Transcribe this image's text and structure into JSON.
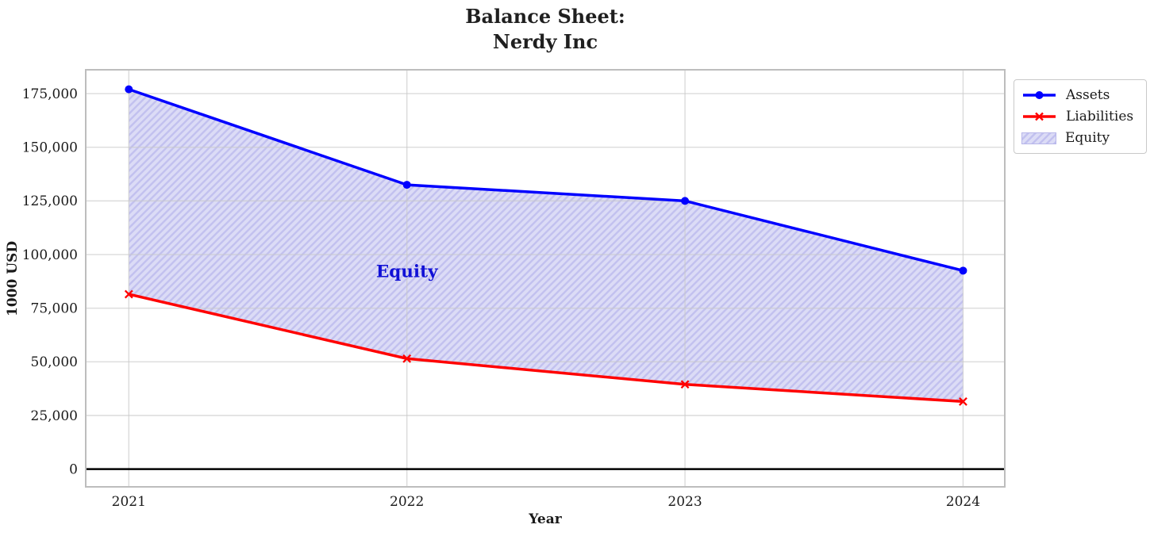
{
  "chart_data": {
    "type": "line",
    "title": "Balance Sheet:\nNerdy Inc",
    "title_lines": [
      "Balance Sheet:",
      "Nerdy Inc"
    ],
    "xlabel": "Year",
    "ylabel": "1000 USD",
    "x": [
      2021,
      2022,
      2023,
      2024
    ],
    "x_tick_labels": [
      "2021",
      "2022",
      "2023",
      "2024"
    ],
    "series": [
      {
        "name": "Assets",
        "color": "#0000ff",
        "marker": "circle",
        "values": [
          177000,
          132500,
          125000,
          92500
        ]
      },
      {
        "name": "Liabilities",
        "color": "#ff0000",
        "marker": "x",
        "values": [
          81500,
          51500,
          39500,
          31500
        ]
      }
    ],
    "equity_area": {
      "legend_label": "Equity",
      "fill_between": [
        "Liabilities",
        "Assets"
      ],
      "fill_color": "#dcdcf6",
      "hatch_color": "#c2c1ef",
      "hatch_style": "diagonal",
      "annotation": {
        "text": "Equity",
        "x": 2022,
        "y": 92000,
        "color": "#1111d6"
      }
    },
    "ytick_values": [
      0,
      25000,
      50000,
      75000,
      100000,
      125000,
      150000,
      175000
    ],
    "ytick_labels": [
      "0",
      "25,000",
      "50,000",
      "75,000",
      "100,000",
      "125,000",
      "150,000",
      "175,000"
    ],
    "xlim": [
      2020.845,
      2024.15
    ],
    "ylim": [
      -8250,
      186100
    ],
    "grid": true,
    "grid_color": "#c9c9c9",
    "frame_color": "#bdbdbd",
    "zero_line_color": "#000000",
    "legend_position": "outside upper right"
  }
}
